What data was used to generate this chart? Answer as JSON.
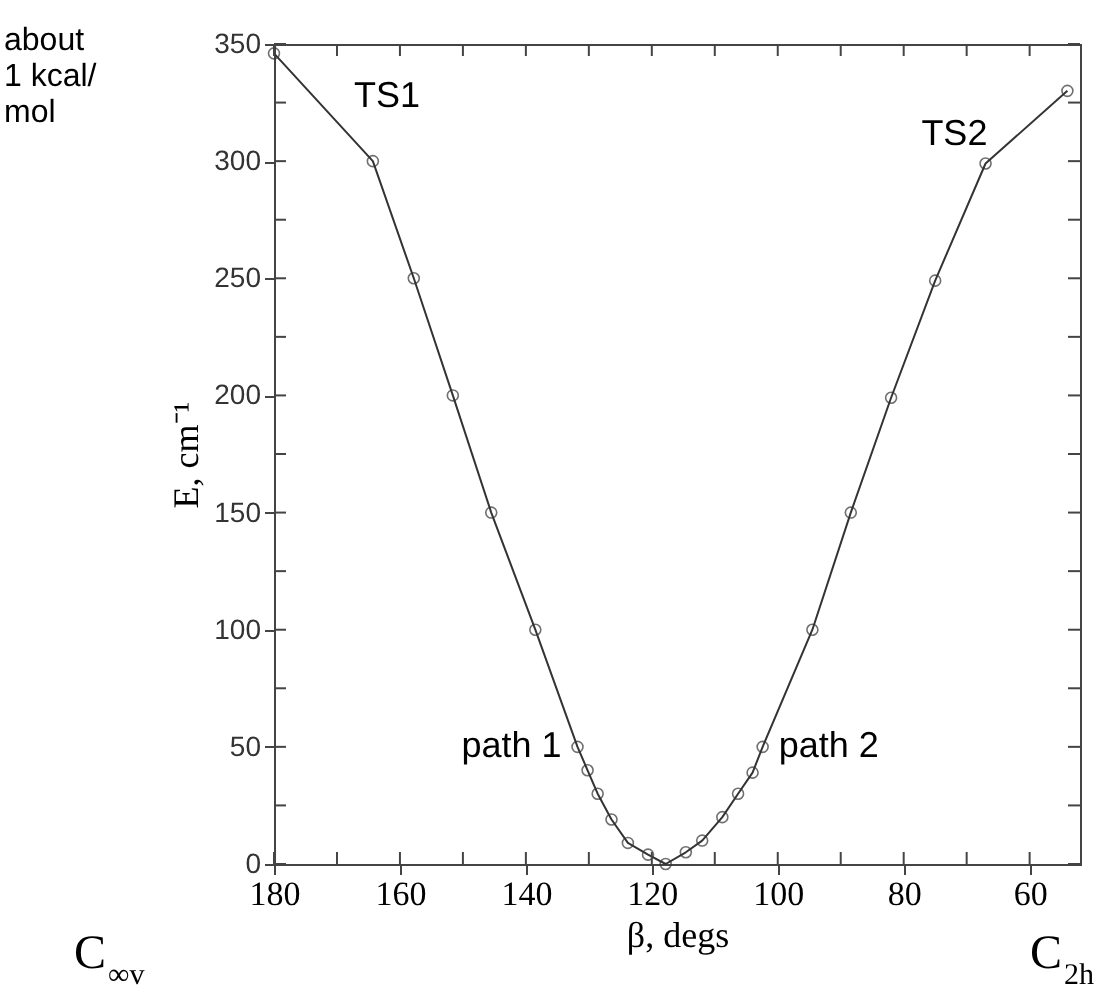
{
  "chart_data": {
    "type": "line",
    "xlabel": "β, degs",
    "ylabel": "E, cm⁻¹",
    "x": [
      180,
      164.3,
      157.8,
      151.6,
      145.5,
      138.5,
      131.8,
      130.2,
      128.6,
      126.4,
      123.8,
      120.6,
      117.8,
      114.6,
      112,
      108.8,
      106.3,
      104,
      102.4,
      94.5,
      88.4,
      82,
      75,
      67,
      54
    ],
    "series": [
      {
        "color": "#333333",
        "values": [
          346,
          300,
          250,
          200,
          150,
          100,
          50,
          40,
          30,
          19,
          9,
          4,
          0,
          5,
          10,
          20,
          30,
          39,
          50,
          100,
          150,
          199,
          249,
          299,
          330
        ]
      }
    ],
    "marker": "circle",
    "line_style": "solid",
    "grid": false,
    "xlim": [
      180,
      52
    ],
    "ylim": [
      0,
      350
    ],
    "xticks": [
      180,
      {
        "value": 170,
        "label": null
      },
      160,
      {
        "value": 150,
        "label": null
      },
      140,
      {
        "value": 130,
        "label": null
      },
      120,
      {
        "value": 110,
        "label": null
      },
      100,
      {
        "value": 90,
        "label": null
      },
      80,
      {
        "value": 70,
        "label": null
      },
      60
    ],
    "yticks": [
      0,
      {
        "value": 25,
        "label": null
      },
      50,
      {
        "value": 75,
        "label": null
      },
      100,
      {
        "value": 125,
        "label": null
      },
      150,
      {
        "value": 175,
        "label": null
      },
      200,
      {
        "value": 225,
        "label": null
      },
      250,
      {
        "value": 275,
        "label": null
      },
      300,
      {
        "value": 325,
        "label": null
      },
      350
    ],
    "annotations": [
      "about\n1 kcal/\nmol",
      {
        "text": "TS1",
        "x": 180,
        "y": 346
      },
      {
        "text": "TS2",
        "x": 54,
        "y": 330
      },
      {
        "text": "path 1",
        "x": 131.8,
        "y": 50
      },
      {
        "text": "path 2",
        "x": 102.4,
        "y": 50
      },
      "C$_{∞v}$",
      "C$_{2h}$"
    ]
  }
}
